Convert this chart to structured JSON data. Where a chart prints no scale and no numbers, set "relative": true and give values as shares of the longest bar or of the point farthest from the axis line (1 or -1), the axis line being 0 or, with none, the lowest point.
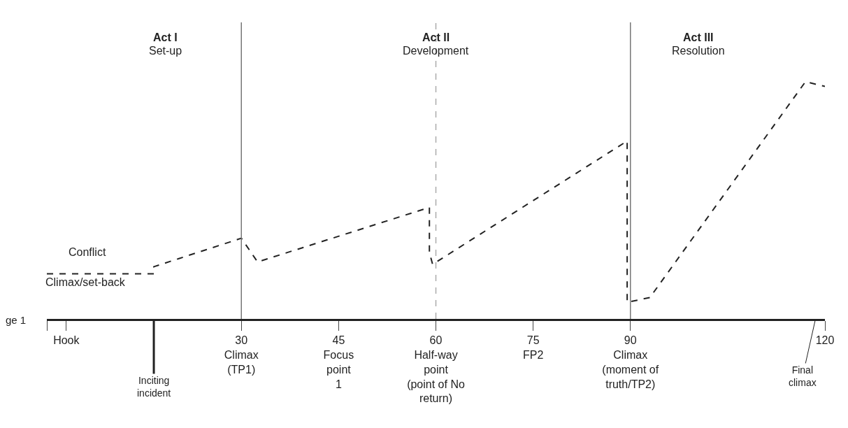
{
  "chart_data": {
    "type": "line",
    "relative": true,
    "line_style": "dashed",
    "xlim": [
      0,
      120
    ],
    "xticks": [
      {
        "value": 0,
        "label": null
      },
      {
        "value": 3,
        "label": "Hook"
      },
      {
        "value": 30,
        "label": "30\nClimax\n(TP1)"
      },
      {
        "value": 45,
        "label": "45\nFocus\npoint\n1"
      },
      {
        "value": 60,
        "label": "60\nHalf-way\npoint\n(point of No\nreturn)"
      },
      {
        "value": 75,
        "label": "75\nFP2"
      },
      {
        "value": 90,
        "label": "90\nClimax\n(moment of\ntruth/TP2)"
      },
      {
        "value": 120,
        "label": "120"
      }
    ],
    "series": [
      {
        "color": "#222222",
        "x": [
          0,
          16.5,
          16.5,
          30,
          32.5,
          59,
          59,
          59.5,
          89.5,
          89.5,
          93,
          117,
          120
        ],
        "values": [
          0.19,
          0.19,
          0.22,
          0.34,
          0.24,
          0.47,
          0.28,
          0.23,
          0.75,
          0.07,
          0.09,
          1,
          0.98
        ]
      }
    ],
    "ref_lines": [
      {
        "axis": "x",
        "value": 30,
        "color": "#777777",
        "line_style": "solid"
      },
      {
        "axis": "x",
        "value": 60,
        "color": "#aaaaaa",
        "line_style": "dashed"
      },
      {
        "axis": "x",
        "value": 90,
        "color": "#777777",
        "line_style": "solid"
      }
    ],
    "annotations": [
      "Act I",
      "Set-up",
      "Act II",
      "Development",
      "Act III",
      "Resolution",
      "Conflict",
      "Climax/set-back",
      "ge 1",
      {
        "text": "Inciting\nincident",
        "x": 16.5
      },
      "Final\nclimax"
    ]
  }
}
